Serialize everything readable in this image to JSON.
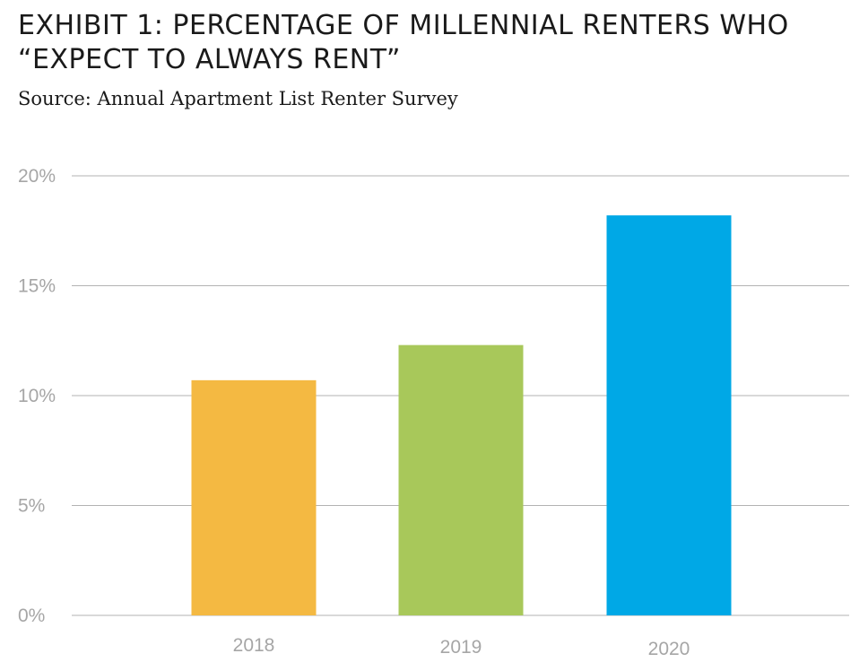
{
  "chart_data": {
    "type": "bar",
    "title": "EXHIBIT 1: PERCENTAGE OF MILLENNIAL RENTERS WHO “EXPECT TO ALWAYS RENT”",
    "subtitle": "Source: Annual Apartment List Renter Survey",
    "categories": [
      "2018",
      "2019",
      "2020"
    ],
    "values": [
      10.7,
      12.3,
      18.2
    ],
    "colors": [
      "#f4b942",
      "#a8c85a",
      "#00a8e6"
    ],
    "ylim": [
      0,
      20
    ],
    "yticks": [
      0,
      5,
      10,
      15,
      20
    ],
    "ytick_labels": [
      "0%",
      "5%",
      "10%",
      "15%",
      "20%"
    ],
    "xlabel": "",
    "ylabel": "",
    "grid": true
  }
}
